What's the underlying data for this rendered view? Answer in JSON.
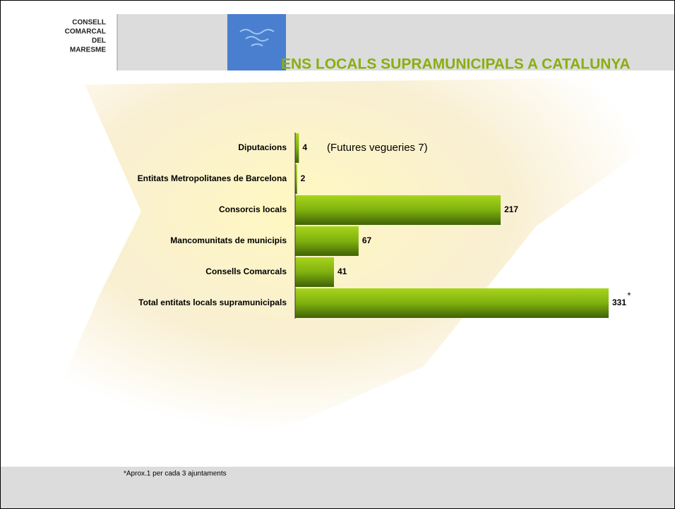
{
  "header": {
    "logo_lines": [
      "CONSELL",
      "COMARCAL",
      "DEL",
      "MARESME"
    ]
  },
  "chart_data": {
    "type": "bar",
    "orientation": "horizontal",
    "title": "ENS LOCALS SUPRAMUNICIPALS A CATALUNYA",
    "categories": [
      "Diputacions",
      "Entitats Metropolitanes de Barcelona",
      "Consorcis locals",
      "Mancomunitats de municipis",
      "Consells Comarcals",
      "Total entitats locals supramunicipals"
    ],
    "values": [
      4,
      2,
      217,
      67,
      41,
      331
    ],
    "color": "#7fb10f",
    "xlim": [
      0,
      331
    ],
    "annotations": [
      "(Futures vegueries 7)",
      "*"
    ]
  },
  "footer": {
    "note": "*Aprox.1 per cada 3 ajuntaments"
  }
}
